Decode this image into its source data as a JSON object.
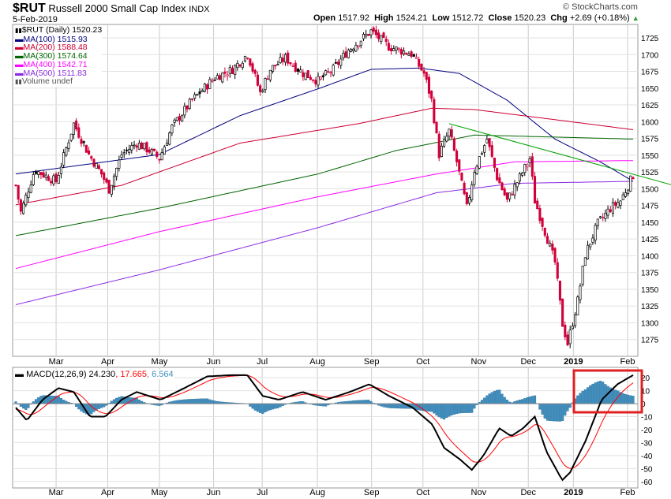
{
  "header": {
    "symbol": "$RUT",
    "name": "Russell 2000 Small Cap Index",
    "exchange": "INDX",
    "date": "5-Feb-2019",
    "watermark": "© StockCharts.com",
    "open_label": "Open",
    "open": "1517.92",
    "high_label": "High",
    "high": "1524.21",
    "low_label": "Low",
    "low": "1512.72",
    "close_label": "Close",
    "close": "1520.23",
    "chg_label": "Chg",
    "chg": "+2.69 (+0.18%)"
  },
  "legend": [
    {
      "label": "$RUT (Daily) 1520.23",
      "color": "#000000"
    },
    {
      "label": "MA(100) 1515.93",
      "color": "#000080"
    },
    {
      "label": "MA(200) 1588.48",
      "color": "#cc0033"
    },
    {
      "label": "MA(300) 1574.64",
      "color": "#006400"
    },
    {
      "label": "MA(400) 1542.71",
      "color": "#ff00ff"
    },
    {
      "label": "MA(500) 1511.83",
      "color": "#8a2be2"
    },
    {
      "label": "Volume undef",
      "color": "#555555"
    }
  ],
  "macd_legend": {
    "label": "MACD(12,26,9) 24.230",
    "signal": "17.665",
    "hist": "6.564"
  },
  "chart_data": [
    {
      "type": "candlestick",
      "title": "$RUT Russell 2000 Small Cap Index",
      "ylim": [
        1250,
        1745
      ],
      "yticks": [
        1275,
        1300,
        1325,
        1350,
        1375,
        1400,
        1425,
        1450,
        1475,
        1500,
        1525,
        1550,
        1575,
        1600,
        1625,
        1650,
        1675,
        1700,
        1725
      ],
      "days": 245,
      "months": [
        {
          "label": "Mar",
          "day": 16
        },
        {
          "label": "Apr",
          "day": 36.5
        },
        {
          "label": "May",
          "day": 57
        },
        {
          "label": "Jun",
          "day": 78.5
        },
        {
          "label": "Jul",
          "day": 97.8
        },
        {
          "label": "Aug",
          "day": 119.7
        },
        {
          "label": "Sep",
          "day": 141.2
        },
        {
          "label": "Oct",
          "day": 161.6
        },
        {
          "label": "Nov",
          "day": 183.7
        },
        {
          "label": "Dec",
          "day": 203.4
        },
        {
          "label": "2019",
          "day": 221.3
        },
        {
          "label": "Feb",
          "day": 242.8
        }
      ],
      "close_keypoints": [
        [
          0,
          1505
        ],
        [
          2,
          1465
        ],
        [
          7.5,
          1528
        ],
        [
          16,
          1511
        ],
        [
          23,
          1597
        ],
        [
          29,
          1551
        ],
        [
          34,
          1522
        ],
        [
          37,
          1499
        ],
        [
          42,
          1551
        ],
        [
          48,
          1568
        ],
        [
          53,
          1557
        ],
        [
          57,
          1545
        ],
        [
          62,
          1592
        ],
        [
          70,
          1632
        ],
        [
          79,
          1666
        ],
        [
          86,
          1678
        ],
        [
          92,
          1701
        ],
        [
          97,
          1643
        ],
        [
          101,
          1678
        ],
        [
          107,
          1695
        ],
        [
          114,
          1672
        ],
        [
          120,
          1661
        ],
        [
          126,
          1678
        ],
        [
          132,
          1707
        ],
        [
          141,
          1735
        ],
        [
          148,
          1712
        ],
        [
          157,
          1701
        ],
        [
          162,
          1672
        ],
        [
          165,
          1632
        ],
        [
          168,
          1551
        ],
        [
          172,
          1586
        ],
        [
          175,
          1540
        ],
        [
          179,
          1471
        ],
        [
          182,
          1528
        ],
        [
          187,
          1574
        ],
        [
          191,
          1517
        ],
        [
          195,
          1482
        ],
        [
          200,
          1517
        ],
        [
          204,
          1545
        ],
        [
          206,
          1482
        ],
        [
          211,
          1425
        ],
        [
          214,
          1390
        ],
        [
          217,
          1298
        ],
        [
          219,
          1269
        ],
        [
          223,
          1333
        ],
        [
          226,
          1402
        ],
        [
          231,
          1448
        ],
        [
          236,
          1471
        ],
        [
          240,
          1482
        ],
        [
          245,
          1520
        ]
      ],
      "moving_averages": [
        {
          "name": "MA(100)",
          "color": "#000080",
          "points": [
            [
              0,
              1522
            ],
            [
              57,
              1551
            ],
            [
              89,
              1609
            ],
            [
              120,
              1649
            ],
            [
              141,
              1678
            ],
            [
              160,
              1680
            ],
            [
              176,
              1672
            ],
            [
              195,
              1632
            ],
            [
              214,
              1574
            ],
            [
              232,
              1540
            ],
            [
              245,
              1511
            ]
          ]
        },
        {
          "name": "MA(200)",
          "color": "#cc0033",
          "points": [
            [
              0,
              1476
            ],
            [
              42,
              1505
            ],
            [
              89,
              1568
            ],
            [
              136,
              1597
            ],
            [
              165,
              1620
            ],
            [
              182,
              1618
            ],
            [
              214,
              1603
            ],
            [
              245,
              1588
            ]
          ]
        },
        {
          "name": "MA(300)",
          "color": "#006400",
          "points": [
            [
              0,
              1430
            ],
            [
              57,
              1471
            ],
            [
              120,
              1522
            ],
            [
              151,
              1557
            ],
            [
              182,
              1580
            ],
            [
              214,
              1577
            ],
            [
              245,
              1574
            ]
          ]
        },
        {
          "name": "MA(400)",
          "color": "#ff00ff",
          "points": [
            [
              0,
              1381
            ],
            [
              57,
              1436
            ],
            [
              120,
              1488
            ],
            [
              167,
              1522
            ],
            [
              198,
              1540
            ],
            [
              245,
              1542
            ]
          ]
        },
        {
          "name": "MA(500)",
          "color": "#8a2be2",
          "points": [
            [
              0,
              1327
            ],
            [
              57,
              1379
            ],
            [
              120,
              1442
            ],
            [
              167,
              1494
            ],
            [
              198,
              1508
            ],
            [
              245,
              1511
            ]
          ]
        }
      ],
      "trendline": {
        "color": "#00a000",
        "from": [
          172,
          1597
        ],
        "to": [
          261,
          1505
        ]
      }
    },
    {
      "type": "line",
      "title": "MACD(12,26,9)",
      "ylim": [
        -65,
        28
      ],
      "yticks": [
        20,
        10,
        0,
        -10,
        -20,
        -30,
        -40,
        -50,
        -60
      ],
      "macd_keypoints": [
        [
          0,
          -3
        ],
        [
          4.4,
          -13
        ],
        [
          10.6,
          3
        ],
        [
          16.9,
          12
        ],
        [
          23,
          9
        ],
        [
          29.4,
          -10
        ],
        [
          35.6,
          -10
        ],
        [
          41.9,
          3
        ],
        [
          48,
          9
        ],
        [
          57.5,
          3
        ],
        [
          66.9,
          12
        ],
        [
          76,
          21
        ],
        [
          85.6,
          22
        ],
        [
          91.9,
          22
        ],
        [
          98,
          6
        ],
        [
          104.4,
          3
        ],
        [
          113.8,
          9
        ],
        [
          123,
          3
        ],
        [
          132.5,
          9
        ],
        [
          140.3,
          15
        ],
        [
          148.1,
          6
        ],
        [
          157.5,
          -3
        ],
        [
          165.3,
          -16
        ],
        [
          170,
          -34
        ],
        [
          176.3,
          -43
        ],
        [
          181,
          -51
        ],
        [
          185.6,
          -40
        ],
        [
          191.9,
          -19
        ],
        [
          196.6,
          -25
        ],
        [
          201.3,
          -19
        ],
        [
          206,
          -10
        ],
        [
          210.6,
          -37
        ],
        [
          216.9,
          -59
        ],
        [
          220,
          -53
        ],
        [
          226.3,
          -28
        ],
        [
          232.5,
          3
        ],
        [
          238.8,
          15
        ],
        [
          245,
          22
        ]
      ],
      "series": [
        {
          "name": "MACD",
          "color": "#000000"
        },
        {
          "name": "Signal",
          "color": "#ff0000"
        },
        {
          "name": "Histogram",
          "color": "#3f8fbf"
        }
      ],
      "highlight_color": "#e02020"
    }
  ]
}
